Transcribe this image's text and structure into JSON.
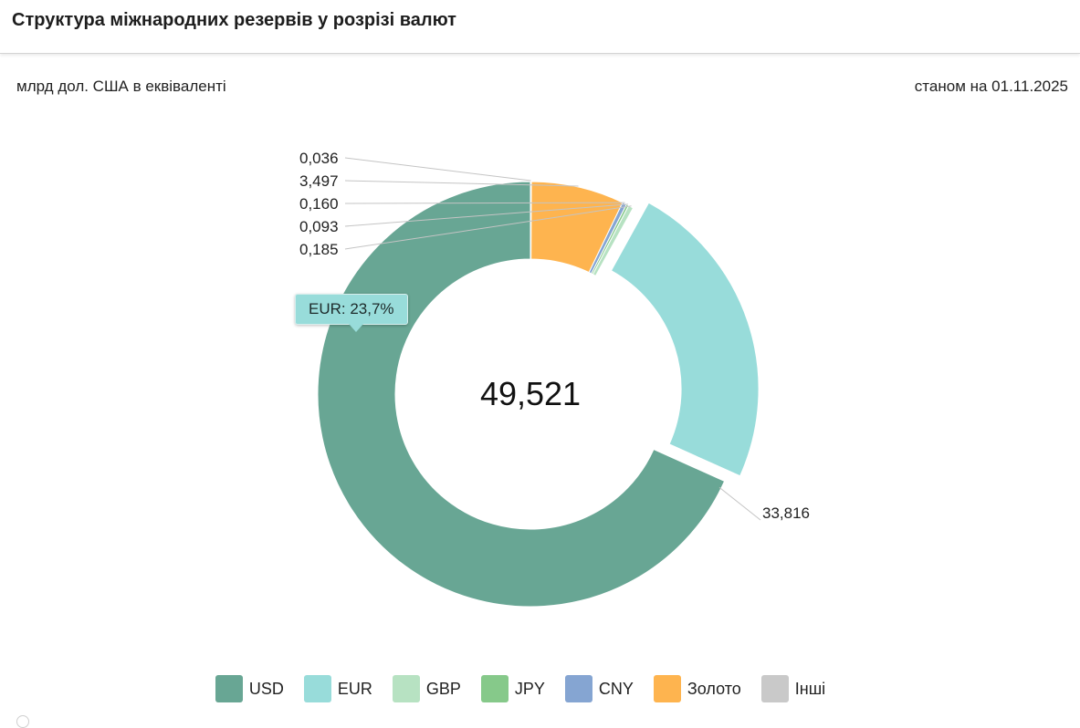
{
  "header": {
    "title": "Структура міжнародних резервів у розрізі валют"
  },
  "units_label": "млрд дол. США в еквіваленті",
  "date_label": "станом на 01.11.2025",
  "tooltip": {
    "text": "EUR: 23,7%"
  },
  "chart_data": {
    "type": "pie",
    "variant": "donut",
    "center_label": "49,521",
    "total": 49.521,
    "highlighted": "EUR",
    "legend_position": "bottom",
    "slices": [
      {
        "name": "USD",
        "value": 33.816,
        "label": "33,816",
        "color": "#68a694"
      },
      {
        "name": "EUR",
        "value": 11.734,
        "label": "",
        "color": "#98dcda"
      },
      {
        "name": "GBP",
        "value": 0.185,
        "label": "0,185",
        "color": "#b7e2c2"
      },
      {
        "name": "JPY",
        "value": 0.093,
        "label": "0,093",
        "color": "#86c98a"
      },
      {
        "name": "CNY",
        "value": 0.16,
        "label": "0,160",
        "color": "#85a5d2"
      },
      {
        "name": "Золото",
        "value": 3.497,
        "label": "3,497",
        "color": "#feb44f"
      },
      {
        "name": "Інші",
        "value": 0.036,
        "label": "0,036",
        "color": "#c9c9c9"
      }
    ]
  }
}
